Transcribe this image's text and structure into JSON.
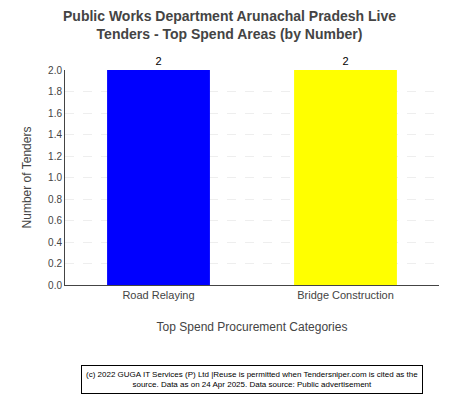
{
  "chart_data": {
    "type": "bar",
    "title": "Public Works Department Arunachal Pradesh Live\nTenders - Top Spend Areas (by Number)",
    "categories": [
      "Road Relaying",
      "Bridge Construction"
    ],
    "values": [
      2,
      2
    ],
    "colors": [
      "#0000FF",
      "#FFFF00"
    ],
    "xlabel": "Top Spend Procurement Categories",
    "ylabel": "Number of Tenders",
    "ylim": [
      0,
      2.0
    ],
    "yticks": [
      {
        "value": 0.0,
        "label": "0.0"
      },
      0.2,
      0.4,
      0.6,
      0.8,
      {
        "value": 1.0,
        "label": "1.0"
      },
      1.2,
      1.4,
      1.6,
      1.8,
      {
        "value": 2.0,
        "label": "2.0"
      }
    ],
    "grid": true,
    "data_labels": true,
    "annotations": [
      "(c) 2022 GUGA IT Services (P) Ltd |Reuse is permitted when Tendersniper.com is cited as the\nsource. Data as on 24 Apr 2025. Data source: Public advertisement"
    ]
  }
}
